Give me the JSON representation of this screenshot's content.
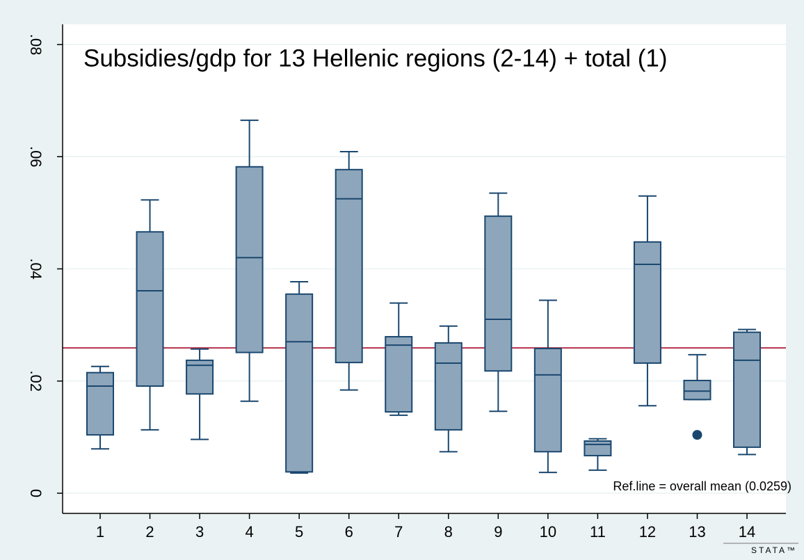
{
  "chart_data": {
    "type": "box",
    "title": "Subsidies/gdp for 13 Hellenic regions (2-14) + total (1)",
    "categories": [
      "1",
      "2",
      "3",
      "4",
      "5",
      "6",
      "7",
      "8",
      "9",
      "10",
      "11",
      "12",
      "13",
      "14"
    ],
    "boxes": [
      {
        "whislo": 0.0079,
        "q1": 0.0104,
        "med": 0.0191,
        "q3": 0.0215,
        "whishi": 0.0226,
        "fliers": []
      },
      {
        "whislo": 0.0113,
        "q1": 0.0191,
        "med": 0.0361,
        "q3": 0.0466,
        "whishi": 0.0523,
        "fliers": []
      },
      {
        "whislo": 0.0096,
        "q1": 0.0177,
        "med": 0.0228,
        "q3": 0.0237,
        "whishi": 0.0257,
        "fliers": []
      },
      {
        "whislo": 0.0164,
        "q1": 0.0251,
        "med": 0.042,
        "q3": 0.0582,
        "whishi": 0.0665,
        "fliers": []
      },
      {
        "whislo": 0.0036,
        "q1": 0.0038,
        "med": 0.027,
        "q3": 0.0355,
        "whishi": 0.0377,
        "fliers": []
      },
      {
        "whislo": 0.0184,
        "q1": 0.0233,
        "med": 0.0525,
        "q3": 0.0577,
        "whishi": 0.0609,
        "fliers": []
      },
      {
        "whislo": 0.0139,
        "q1": 0.0145,
        "med": 0.0264,
        "q3": 0.0279,
        "whishi": 0.0339,
        "fliers": []
      },
      {
        "whislo": 0.0074,
        "q1": 0.0113,
        "med": 0.0232,
        "q3": 0.0268,
        "whishi": 0.0298,
        "fliers": []
      },
      {
        "whislo": 0.0146,
        "q1": 0.0218,
        "med": 0.031,
        "q3": 0.0494,
        "whishi": 0.0535,
        "fliers": []
      },
      {
        "whislo": 0.0037,
        "q1": 0.0074,
        "med": 0.0211,
        "q3": 0.0258,
        "whishi": 0.0344,
        "fliers": []
      },
      {
        "whislo": 0.0041,
        "q1": 0.0067,
        "med": 0.0087,
        "q3": 0.0093,
        "whishi": 0.0097,
        "fliers": []
      },
      {
        "whislo": 0.0156,
        "q1": 0.0232,
        "med": 0.0408,
        "q3": 0.0448,
        "whishi": 0.053,
        "fliers": []
      },
      {
        "whislo": 0.0167,
        "q1": 0.0167,
        "med": 0.0182,
        "q3": 0.0201,
        "whishi": 0.0247,
        "fliers": [
          0.0104
        ]
      },
      {
        "whislo": 0.0069,
        "q1": 0.0082,
        "med": 0.0237,
        "q3": 0.0287,
        "whishi": 0.0292,
        "fliers": []
      }
    ],
    "color": "#8ea6bb",
    "edge_color": "#1a476f",
    "ref_line": {
      "value": 0.0259,
      "color": "#b5334c"
    },
    "annotation": "Ref.line = overall mean (0.0259)",
    "ylim": [
      -0.0036,
      0.0836
    ],
    "yticks": [
      0,
      {
        "value": 0.02,
        "label": ".02"
      },
      {
        "value": 0.04,
        "label": ".04"
      },
      {
        "value": 0.06,
        "label": ".06"
      },
      {
        "value": 0.08,
        "label": ".08"
      }
    ],
    "grid": true,
    "logo": "STATA™"
  }
}
